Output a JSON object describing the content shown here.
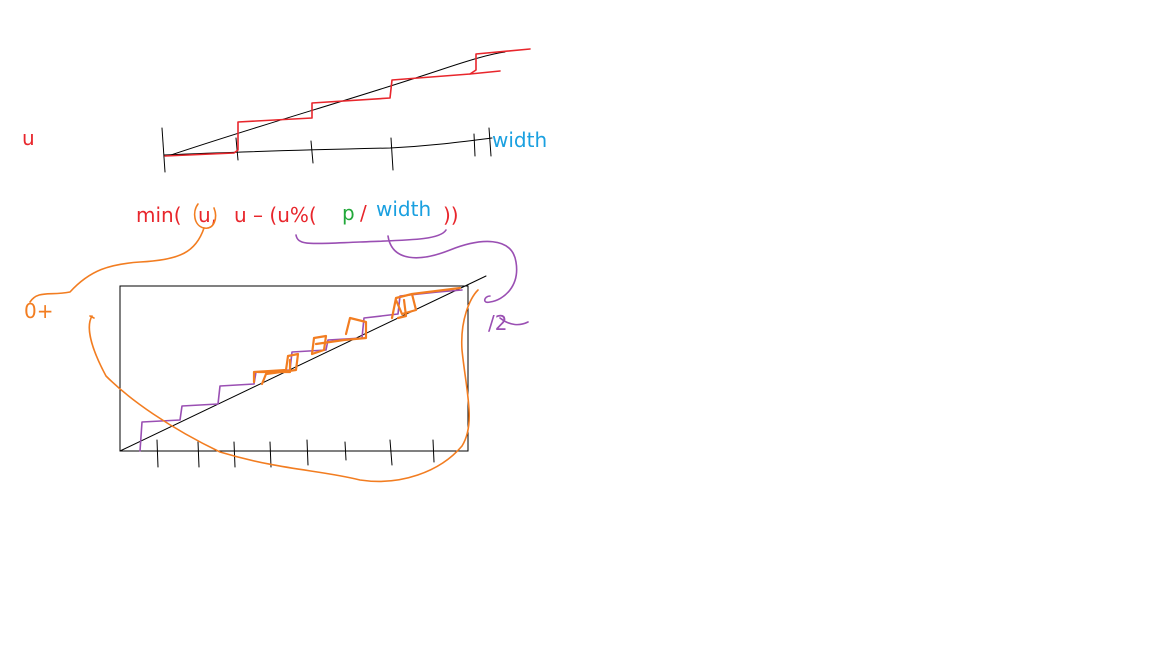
{
  "labels": {
    "u_left": "u",
    "width_label": "width",
    "formula": {
      "min_open": "min(",
      "first_arg": "u,",
      "mid": "u – (u%(",
      "p": "p",
      "slash": "/",
      "width": "width",
      "close": "))"
    },
    "zero_plus": "0+",
    "half": "/2"
  },
  "colors": {
    "red": "#e8262c",
    "blue": "#1aa0e0",
    "green": "#22a83a",
    "purple": "#9a4fb3",
    "orange": "#f27d21",
    "black": "#000000"
  }
}
